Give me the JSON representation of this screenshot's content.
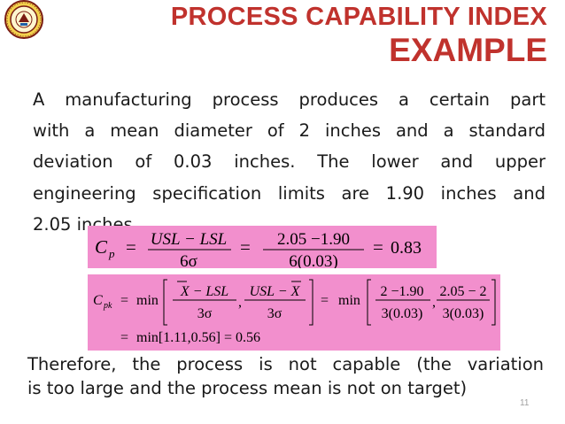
{
  "header": {
    "title_line1": "PROCESS CAPABILITY INDEX",
    "title_line2": "EXAMPLE",
    "logo_icon": "university-seal-logo"
  },
  "body": {
    "paragraph_lines": [
      "A manufacturing process produces a certain part",
      "with a mean diameter of 2 inches and a standard",
      "deviation of 0.03 inches. The lower and upper",
      "engineering specification limits are 1.90 inches and",
      "2.05 inches."
    ],
    "conclusion_lines": [
      "Therefore, the process is not capable (the variation",
      "is too large and the process mean is not on target)"
    ]
  },
  "equations": {
    "cp": {
      "symbol": "C",
      "subscript": "p",
      "num1": "USL − LSL",
      "den1": "6σ",
      "num2": "2.05 −1.90",
      "den2": "6(0.03)",
      "result": "0.83"
    },
    "cpk": {
      "symbol": "C",
      "subscript": "pk",
      "min": "min",
      "f1_num": "X − LSL",
      "f1_den": "3σ",
      "f2_num": "USL − X",
      "f2_den": "3σ",
      "g1_num": "2 −1.90",
      "g1_den": "3(0.03)",
      "g2_num": "2.05 − 2",
      "g2_den": "3(0.03)",
      "line2": "min[1.11,0.56] = 0.56"
    },
    "box_color": "#f28fcd"
  },
  "footer": {
    "page_number": "11"
  },
  "colors": {
    "title": "#c0322d",
    "text": "#1a1a1a",
    "page_number": "#a0a0a0"
  }
}
